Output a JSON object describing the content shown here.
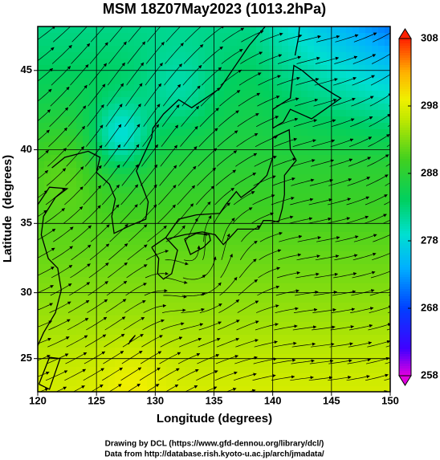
{
  "chart_data": {
    "type": "map",
    "projection": "mercator",
    "title": "MSM 18Z07May2023 (1013.2hPa)",
    "x_label": "Longitude (degrees)",
    "y_label": "Latitude  (degrees)",
    "xlim": [
      120,
      150
    ],
    "ylim": [
      22.4,
      47.6
    ],
    "xticks": [
      120,
      125,
      130,
      135,
      140,
      145,
      150
    ],
    "yticks": [
      25,
      30,
      35,
      40,
      45
    ],
    "grid": true,
    "colorbar": {
      "lim": [
        258,
        308
      ],
      "ticks": [
        258,
        268,
        278,
        288,
        298,
        308
      ]
    },
    "credits": [
      "Drawing by DCL (https://www.gfd-dennou.org/library/dcl/)",
      "Data from http://database.rish.kyoto-u.ac.jp/arch/jmadata/"
    ]
  }
}
